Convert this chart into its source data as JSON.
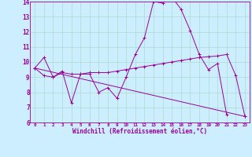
{
  "xlabel": "Windchill (Refroidissement éolien,°C)",
  "background_color": "#cceeff",
  "grid_color": "#aaddcc",
  "line_color": "#990099",
  "series1": [
    9.6,
    10.3,
    9.0,
    9.4,
    7.3,
    9.2,
    9.2,
    8.0,
    8.3,
    7.6,
    9.0,
    10.5,
    11.6,
    14.0,
    13.9,
    14.3,
    13.5,
    12.1,
    10.5,
    9.5,
    9.9,
    6.5,
    null,
    null
  ],
  "series2": [
    9.6,
    9.1,
    9.0,
    9.3,
    9.2,
    9.2,
    9.3,
    9.3,
    9.3,
    9.4,
    9.5,
    9.6,
    9.7,
    9.8,
    9.9,
    10.0,
    10.1,
    10.2,
    10.3,
    10.35,
    10.4,
    10.5,
    9.1,
    6.4
  ],
  "series3": [
    9.6,
    null,
    null,
    null,
    null,
    null,
    null,
    null,
    null,
    null,
    null,
    null,
    null,
    null,
    null,
    null,
    null,
    null,
    null,
    null,
    null,
    null,
    null,
    6.4
  ],
  "ylim": [
    6,
    14
  ],
  "yticks": [
    6,
    7,
    8,
    9,
    10,
    11,
    12,
    13,
    14
  ],
  "xticks": [
    0,
    1,
    2,
    3,
    4,
    5,
    6,
    7,
    8,
    9,
    10,
    11,
    12,
    13,
    14,
    15,
    16,
    17,
    18,
    19,
    20,
    21,
    22,
    23
  ],
  "xlim": [
    -0.5,
    23.5
  ]
}
